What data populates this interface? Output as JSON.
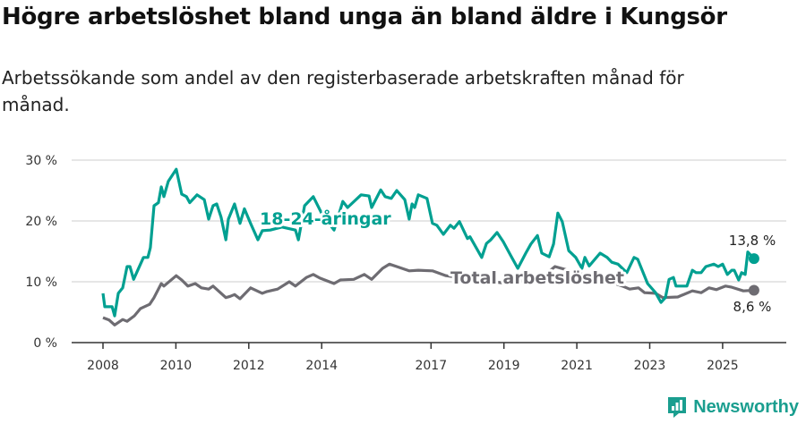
{
  "title": "Högre arbetslöshet bland unga än bland äldre i Kungsör",
  "subtitle": "Arbetssökande som andel av den registerbaserade arbetskraften månad för månad.",
  "brand": "Newsworthy",
  "colors": {
    "youth": "#00a091",
    "total": "#6e6c72",
    "grid": "#dddddd",
    "axis": "#333333"
  },
  "chart_data": {
    "type": "line",
    "title": "Högre arbetslöshet bland unga än bland äldre i Kungsör",
    "xlabel": "",
    "ylabel": "",
    "xlim": [
      2007.1,
      2026.65
    ],
    "ylim": [
      0,
      30
    ],
    "x_ticks": [
      2008,
      2010,
      2012,
      2014,
      2017,
      2019,
      2021,
      2023,
      2025
    ],
    "x_tick_labels": [
      "2008",
      "2010",
      "2012",
      "2014",
      "2017",
      "2019",
      "2021",
      "2023",
      "2025"
    ],
    "y_ticks": [
      0,
      10,
      20,
      30
    ],
    "y_tick_labels": [
      "0 %",
      "10 %",
      "20 %",
      "30 %"
    ],
    "grid": true,
    "series": [
      {
        "name": "18-24-åringar",
        "label": "18-24-åringar",
        "end_label": "13,8 %",
        "points": [
          [
            2008.0,
            8.1
          ],
          [
            2008.05,
            5.9
          ],
          [
            2008.25,
            5.9
          ],
          [
            2008.32,
            4.4
          ],
          [
            2008.42,
            8.1
          ],
          [
            2008.54,
            9.0
          ],
          [
            2008.66,
            12.5
          ],
          [
            2008.74,
            12.5
          ],
          [
            2008.84,
            10.4
          ],
          [
            2009.11,
            14
          ],
          [
            2009.23,
            14
          ],
          [
            2009.3,
            15.6
          ],
          [
            2009.4,
            22.5
          ],
          [
            2009.52,
            23
          ],
          [
            2009.6,
            25.6
          ],
          [
            2009.67,
            24
          ],
          [
            2009.79,
            26.5
          ],
          [
            2010.01,
            28.5
          ],
          [
            2010.16,
            24.4
          ],
          [
            2010.29,
            24
          ],
          [
            2010.38,
            23
          ],
          [
            2010.58,
            24.3
          ],
          [
            2010.78,
            23.5
          ],
          [
            2010.9,
            20.3
          ],
          [
            2011.02,
            22.5
          ],
          [
            2011.12,
            22.8
          ],
          [
            2011.24,
            20.6
          ],
          [
            2011.37,
            16.9
          ],
          [
            2011.44,
            20.3
          ],
          [
            2011.61,
            22.8
          ],
          [
            2011.76,
            19.6
          ],
          [
            2011.88,
            22
          ],
          [
            2012.05,
            19.6
          ],
          [
            2012.25,
            16.9
          ],
          [
            2012.37,
            18.4
          ],
          [
            2012.59,
            18.5
          ],
          [
            2012.91,
            19
          ],
          [
            2013.28,
            18.5
          ],
          [
            2013.36,
            16.9
          ],
          [
            2013.53,
            22.5
          ],
          [
            2013.77,
            24
          ],
          [
            2014.02,
            21
          ],
          [
            2014.34,
            18.5
          ],
          [
            2014.58,
            23.2
          ],
          [
            2014.71,
            22.2
          ],
          [
            2015.08,
            24.3
          ],
          [
            2015.3,
            24.1
          ],
          [
            2015.37,
            22.2
          ],
          [
            2015.62,
            25.1
          ],
          [
            2015.74,
            24
          ],
          [
            2015.91,
            23.7
          ],
          [
            2016.06,
            25
          ],
          [
            2016.28,
            23.5
          ],
          [
            2016.4,
            20.3
          ],
          [
            2016.48,
            22.8
          ],
          [
            2016.55,
            22.2
          ],
          [
            2016.65,
            24.3
          ],
          [
            2016.89,
            23.7
          ],
          [
            2017.04,
            19.6
          ],
          [
            2017.16,
            19.3
          ],
          [
            2017.34,
            17.8
          ],
          [
            2017.53,
            19.3
          ],
          [
            2017.63,
            18.8
          ],
          [
            2017.78,
            19.9
          ],
          [
            2018.0,
            17.1
          ],
          [
            2018.07,
            17.4
          ],
          [
            2018.39,
            14
          ],
          [
            2018.52,
            16.3
          ],
          [
            2018.64,
            16.9
          ],
          [
            2018.81,
            18.1
          ],
          [
            2018.98,
            16.6
          ],
          [
            2019.18,
            14.4
          ],
          [
            2019.38,
            12.2
          ],
          [
            2019.6,
            14.7
          ],
          [
            2019.74,
            16.2
          ],
          [
            2019.92,
            17.6
          ],
          [
            2020.04,
            14.7
          ],
          [
            2020.24,
            14.1
          ],
          [
            2020.36,
            16.2
          ],
          [
            2020.48,
            21.3
          ],
          [
            2020.6,
            19.9
          ],
          [
            2020.78,
            15.1
          ],
          [
            2020.97,
            14
          ],
          [
            2021.14,
            12.2
          ],
          [
            2021.22,
            14
          ],
          [
            2021.34,
            12.6
          ],
          [
            2021.64,
            14.7
          ],
          [
            2021.83,
            14
          ],
          [
            2021.96,
            13.2
          ],
          [
            2022.13,
            12.9
          ],
          [
            2022.37,
            11.5
          ],
          [
            2022.57,
            14
          ],
          [
            2022.67,
            13.7
          ],
          [
            2022.94,
            9.7
          ],
          [
            2023.16,
            8.2
          ],
          [
            2023.31,
            6.6
          ],
          [
            2023.43,
            7.4
          ],
          [
            2023.53,
            10.4
          ],
          [
            2023.65,
            10.7
          ],
          [
            2023.72,
            9.3
          ],
          [
            2024.02,
            9.3
          ],
          [
            2024.17,
            11.9
          ],
          [
            2024.27,
            11.5
          ],
          [
            2024.41,
            11.5
          ],
          [
            2024.54,
            12.5
          ],
          [
            2024.76,
            12.9
          ],
          [
            2024.88,
            12.5
          ],
          [
            2025.0,
            12.9
          ],
          [
            2025.13,
            11.2
          ],
          [
            2025.25,
            11.9
          ],
          [
            2025.32,
            11.9
          ],
          [
            2025.44,
            10.3
          ],
          [
            2025.52,
            11.5
          ],
          [
            2025.62,
            11.2
          ],
          [
            2025.69,
            14.9
          ],
          [
            2025.86,
            13.8
          ]
        ]
      },
      {
        "name": "Total arbetslöshet",
        "label": "Total arbetslöshet",
        "end_label": "8,6 %",
        "points": [
          [
            2008.0,
            4.1
          ],
          [
            2008.17,
            3.7
          ],
          [
            2008.32,
            2.9
          ],
          [
            2008.54,
            3.8
          ],
          [
            2008.66,
            3.5
          ],
          [
            2008.86,
            4.4
          ],
          [
            2009.03,
            5.6
          ],
          [
            2009.28,
            6.3
          ],
          [
            2009.4,
            7.4
          ],
          [
            2009.6,
            9.7
          ],
          [
            2009.67,
            9.3
          ],
          [
            2010.01,
            11
          ],
          [
            2010.16,
            10.3
          ],
          [
            2010.33,
            9.3
          ],
          [
            2010.53,
            9.7
          ],
          [
            2010.7,
            9
          ],
          [
            2010.9,
            8.8
          ],
          [
            2011.02,
            9.3
          ],
          [
            2011.37,
            7.4
          ],
          [
            2011.49,
            7.6
          ],
          [
            2011.61,
            7.9
          ],
          [
            2011.76,
            7.2
          ],
          [
            2012.05,
            9
          ],
          [
            2012.37,
            8.1
          ],
          [
            2012.5,
            8.4
          ],
          [
            2012.79,
            8.8
          ],
          [
            2013.11,
            10
          ],
          [
            2013.28,
            9.3
          ],
          [
            2013.58,
            10.7
          ],
          [
            2013.77,
            11.2
          ],
          [
            2013.95,
            10.6
          ],
          [
            2014.34,
            9.7
          ],
          [
            2014.51,
            10.3
          ],
          [
            2014.88,
            10.4
          ],
          [
            2015.17,
            11.2
          ],
          [
            2015.37,
            10.4
          ],
          [
            2015.67,
            12.2
          ],
          [
            2015.86,
            12.9
          ],
          [
            2016.06,
            12.5
          ],
          [
            2016.4,
            11.8
          ],
          [
            2016.65,
            11.9
          ],
          [
            2017.04,
            11.8
          ],
          [
            2017.41,
            11
          ],
          [
            2018.0,
            10.5
          ],
          [
            2019.0,
            9.8
          ],
          [
            2020.0,
            10.5
          ],
          [
            2020.4,
            12.5
          ],
          [
            2021.0,
            11.5
          ],
          [
            2022.0,
            9.8
          ],
          [
            2022.25,
            9.3
          ],
          [
            2022.45,
            8.8
          ],
          [
            2022.69,
            9
          ],
          [
            2022.86,
            8.2
          ],
          [
            2023.16,
            8.1
          ],
          [
            2023.36,
            7.4
          ],
          [
            2023.77,
            7.5
          ],
          [
            2024.17,
            8.5
          ],
          [
            2024.41,
            8.2
          ],
          [
            2024.63,
            9
          ],
          [
            2024.83,
            8.7
          ],
          [
            2025.08,
            9.3
          ],
          [
            2025.25,
            9.1
          ],
          [
            2025.57,
            8.5
          ],
          [
            2025.86,
            8.6
          ]
        ]
      }
    ]
  }
}
